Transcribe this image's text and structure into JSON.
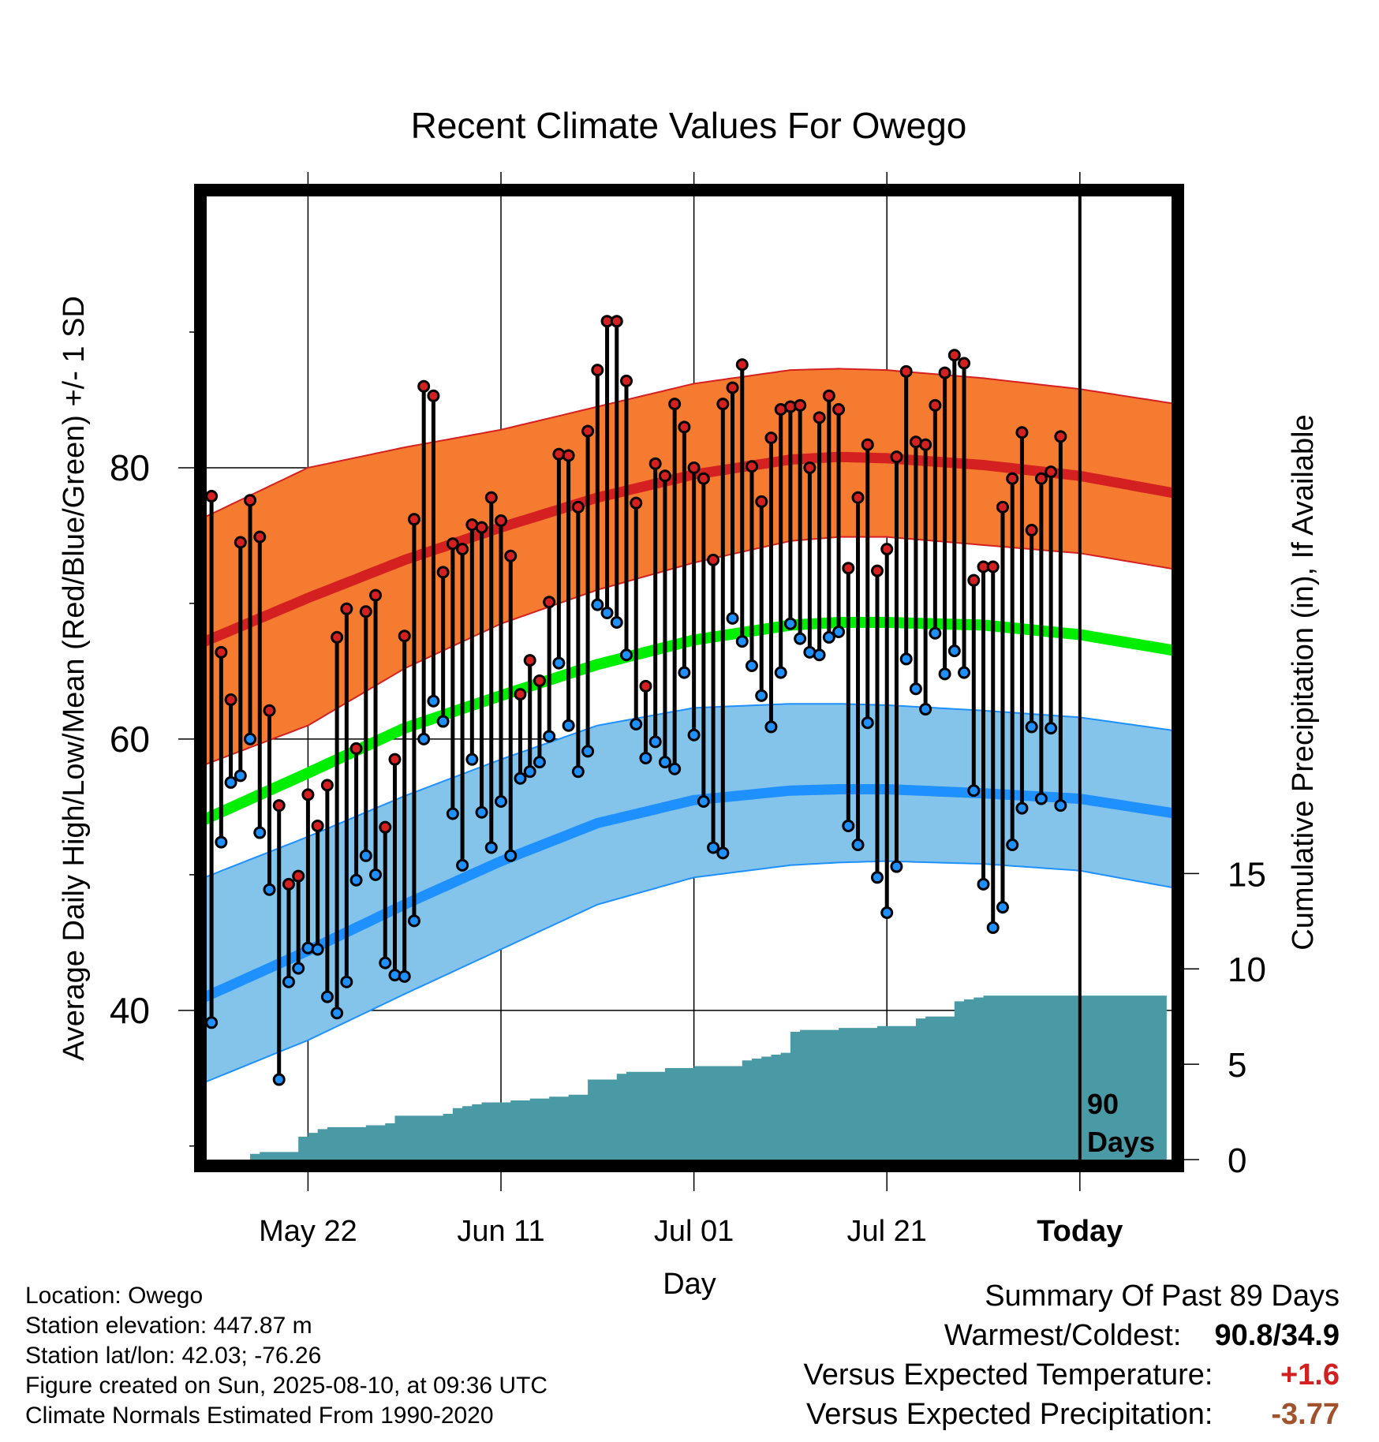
{
  "chart_data": {
    "type": "line",
    "title": "Recent Climate Values For Owego",
    "xlabel": "Day",
    "ylabel_left": "Average Daily High/Low/Mean (Red/Blue/Green) +/- 1 SD",
    "ylabel_right": "Cumulative Precipitation (in), If Available",
    "x_tick_labels": [
      "May 22",
      "Jun 11",
      "Jul 01",
      "Jul 21",
      "Today"
    ],
    "x_tick_days": [
      10,
      30,
      50,
      70,
      90
    ],
    "x_range_days": [
      -0.5,
      99.5
    ],
    "y_left_ticks": [
      40,
      60,
      80
    ],
    "y_left_range": [
      29,
      100
    ],
    "y_right_ticks": [
      0,
      5,
      10,
      15
    ],
    "y_right_range": [
      0,
      50.5
    ],
    "today_marker": {
      "day": 90,
      "label_1": "90",
      "label_2": "Days"
    },
    "grid": true,
    "normals": {
      "days": [
        0,
        10,
        20,
        30,
        40,
        50,
        60,
        65,
        70,
        80,
        90,
        100
      ],
      "high_mean": [
        67.4,
        70.4,
        73.2,
        75.6,
        77.8,
        79.5,
        80.6,
        80.8,
        80.7,
        80.2,
        79.4,
        78.1
      ],
      "high_upper": [
        76.6,
        80.0,
        81.5,
        82.8,
        84.5,
        86.2,
        87.2,
        87.3,
        87.2,
        86.6,
        85.8,
        84.7
      ],
      "high_lower": [
        58.3,
        61.0,
        65.2,
        68.5,
        71.0,
        73.0,
        74.6,
        74.9,
        74.9,
        74.3,
        73.7,
        72.5
      ],
      "mean": [
        54.3,
        57.5,
        60.8,
        63.2,
        65.5,
        67.3,
        68.4,
        68.6,
        68.6,
        68.4,
        67.7,
        66.5
      ],
      "low_mean": [
        41.2,
        44.4,
        47.8,
        51.0,
        53.8,
        55.5,
        56.2,
        56.3,
        56.3,
        56.0,
        55.6,
        54.5
      ],
      "low_upper": [
        50.0,
        52.8,
        55.8,
        58.5,
        61.0,
        62.3,
        62.6,
        62.6,
        62.5,
        62.1,
        61.6,
        60.6
      ],
      "low_lower": [
        34.9,
        37.8,
        41.2,
        44.5,
        47.8,
        49.8,
        50.7,
        50.9,
        51.0,
        50.8,
        50.3,
        49.0
      ]
    },
    "series": [
      {
        "name": "High",
        "color": "#d42020",
        "values": [
          77.9,
          66.4,
          62.9,
          74.5,
          77.6,
          74.9,
          62.1,
          55.1,
          49.3,
          49.9,
          55.9,
          53.6,
          56.6,
          67.5,
          69.6,
          59.3,
          69.4,
          70.6,
          53.5,
          58.5,
          67.6,
          76.2,
          86.0,
          85.3,
          72.3,
          74.4,
          74.0,
          75.8,
          75.6,
          77.8,
          76.1,
          73.5,
          63.3,
          65.8,
          64.3,
          70.1,
          81.0,
          80.9,
          77.1,
          82.7,
          87.2,
          90.8,
          90.8,
          86.4,
          77.4,
          63.9,
          80.3,
          79.4,
          84.7,
          83.0,
          80.0,
          79.2,
          73.2,
          84.7,
          85.9,
          87.6,
          80.1,
          77.5,
          82.2,
          84.3,
          84.5,
          84.6,
          80.0,
          83.7,
          85.3,
          84.3,
          72.6,
          77.8,
          81.7,
          72.4,
          74.0,
          80.8,
          87.1,
          81.9,
          81.7,
          84.6,
          87.0,
          88.3,
          87.7,
          71.7,
          72.7,
          72.7,
          77.1,
          79.2,
          82.6,
          75.4,
          79.2,
          79.7,
          82.3
        ]
      },
      {
        "name": "Low",
        "color": "#1e90ff",
        "values": [
          39.1,
          52.4,
          56.8,
          57.3,
          60.0,
          53.1,
          48.9,
          34.9,
          42.1,
          43.1,
          44.6,
          44.5,
          41.0,
          39.8,
          42.1,
          49.6,
          51.4,
          50.0,
          43.5,
          42.6,
          42.5,
          46.6,
          60.0,
          62.8,
          61.3,
          54.5,
          50.7,
          58.5,
          54.6,
          52.0,
          55.4,
          51.4,
          57.1,
          57.6,
          58.3,
          60.2,
          65.6,
          61.0,
          57.6,
          59.1,
          69.9,
          69.3,
          68.6,
          66.2,
          61.1,
          58.6,
          59.8,
          58.3,
          57.8,
          64.9,
          60.3,
          55.4,
          52.0,
          51.6,
          68.9,
          67.2,
          65.4,
          63.2,
          60.9,
          64.9,
          68.5,
          67.4,
          66.4,
          66.2,
          67.5,
          67.9,
          53.6,
          52.2,
          61.2,
          49.8,
          47.2,
          50.6,
          65.9,
          63.7,
          62.2,
          67.8,
          64.8,
          66.5,
          64.9,
          56.2,
          49.3,
          46.1,
          47.6,
          52.2,
          54.9,
          60.9,
          55.6,
          60.8,
          55.1
        ]
      },
      {
        "name": "Cumulative Precipitation",
        "color": "#4a9aa6",
        "x": [
          4,
          5,
          8,
          9,
          10,
          11,
          12,
          13,
          14,
          15,
          16,
          17,
          18,
          19,
          20,
          21,
          22,
          23,
          24,
          25,
          26,
          27,
          28,
          29,
          30,
          31,
          32,
          33,
          34,
          35,
          36,
          37,
          38,
          39,
          40,
          42,
          43,
          44,
          45,
          46,
          47,
          48,
          49,
          50,
          51,
          52,
          53,
          54,
          55,
          56,
          57,
          58,
          59,
          60,
          61,
          62,
          63,
          64,
          65,
          66,
          67,
          68,
          69,
          70,
          71,
          72,
          73,
          74,
          75,
          76,
          77,
          78,
          79,
          80,
          82,
          83,
          84,
          85,
          86,
          87,
          88,
          89,
          90,
          99
        ],
        "values": [
          0.3,
          0.4,
          0.4,
          1.2,
          1.4,
          1.6,
          1.7,
          1.7,
          1.7,
          1.7,
          1.8,
          1.8,
          1.9,
          2.3,
          2.3,
          2.3,
          2.3,
          2.3,
          2.4,
          2.7,
          2.8,
          2.9,
          3.0,
          3.0,
          3.0,
          3.1,
          3.1,
          3.2,
          3.2,
          3.3,
          3.3,
          3.4,
          3.4,
          4.2,
          4.2,
          4.5,
          4.6,
          4.6,
          4.6,
          4.6,
          4.8,
          4.8,
          4.8,
          4.9,
          4.9,
          4.9,
          4.9,
          4.9,
          5.2,
          5.3,
          5.4,
          5.5,
          5.6,
          6.7,
          6.8,
          6.8,
          6.8,
          6.8,
          6.9,
          6.9,
          6.9,
          6.9,
          7.0,
          7.0,
          7.0,
          7.0,
          7.4,
          7.5,
          7.5,
          7.5,
          8.3,
          8.4,
          8.5,
          8.6,
          8.6,
          8.6,
          8.6,
          8.6,
          8.6,
          8.6,
          8.6,
          8.6,
          8.6,
          8.6
        ]
      }
    ]
  },
  "info": {
    "location": "Location: Owego",
    "elevation": "Station elevation: 447.87 m",
    "latlon": "Station lat/lon: 42.03; -76.26",
    "created": "Figure created on Sun, 2025-08-10, at 09:36 UTC",
    "normals": "Climate Normals Estimated From 1990-2020"
  },
  "summary": {
    "title": "Summary Of Past 89 Days",
    "warm_label": "Warmest/Coldest:",
    "warm_value": "90.8/34.9",
    "temp_label": "Versus Expected Temperature:",
    "temp_value": "+1.6",
    "precip_label": "Versus Expected Precipitation:",
    "precip_value": "-3.77"
  },
  "colors": {
    "high_band": "#f47b2f",
    "high_line": "#d42020",
    "low_band": "#84c3ea",
    "low_line": "#1e90ff",
    "mean_line": "#00ee00",
    "precip": "#4a9aa6"
  }
}
